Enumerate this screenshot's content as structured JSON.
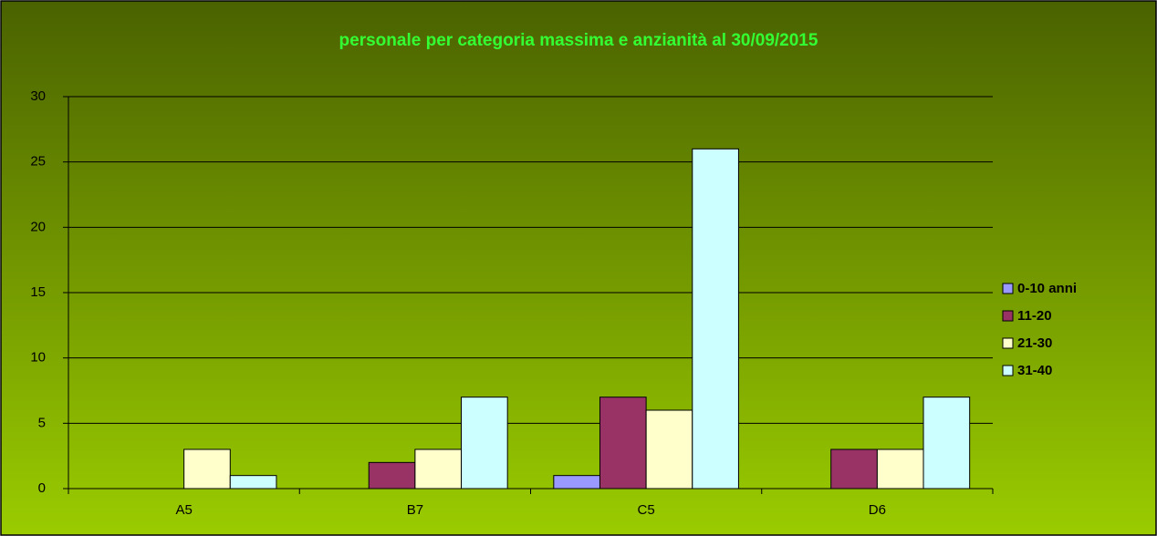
{
  "chart_data": {
    "type": "bar",
    "title": "personale per categoria massima e anzianità al 30/09/2015",
    "categories": [
      "A5",
      "B7",
      "C5",
      "D6"
    ],
    "series": [
      {
        "name": "0-10 anni",
        "color": "#9999ff",
        "values": [
          0,
          0,
          1,
          0
        ]
      },
      {
        "name": "11-20",
        "color": "#993366",
        "values": [
          0,
          2,
          7,
          3
        ]
      },
      {
        "name": "21-30",
        "color": "#ffffcc",
        "values": [
          3,
          3,
          6,
          3
        ]
      },
      {
        "name": "31-40",
        "color": "#ccffff",
        "values": [
          1,
          7,
          26,
          7
        ]
      }
    ],
    "ylim": [
      0,
      30
    ],
    "yticks": [
      0,
      5,
      10,
      15,
      20,
      25,
      30
    ],
    "grid": true,
    "legend": "right"
  }
}
